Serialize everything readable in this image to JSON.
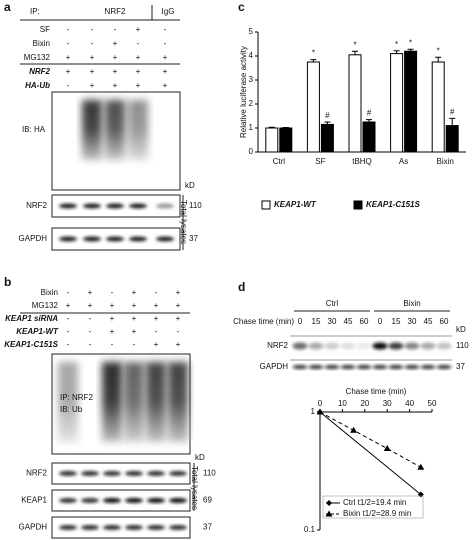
{
  "panels": {
    "a": {
      "label": "a",
      "ip_label": "IP:",
      "ip_groups": [
        "NRF2",
        "IgG"
      ],
      "rows": [
        {
          "name": "SF",
          "signs": [
            "-",
            "-",
            "-",
            "+",
            "-"
          ]
        },
        {
          "name": "Bixin",
          "signs": [
            "-",
            "-",
            "+",
            "-",
            "-"
          ]
        },
        {
          "name": "MG132",
          "signs": [
            "+",
            "+",
            "+",
            "+",
            "+"
          ]
        },
        {
          "name": "NRF2",
          "italic": true,
          "signs": [
            "+",
            "+",
            "+",
            "+",
            "+"
          ]
        },
        {
          "name": "HA-Ub",
          "italic": true,
          "signs": [
            "-",
            "+",
            "+",
            "+",
            "+"
          ]
        }
      ],
      "blot_label": "IB: HA",
      "kd": "kD",
      "bands": [
        {
          "name": "NRF2",
          "kd": "110"
        },
        {
          "name": "GAPDH",
          "kd": "37"
        }
      ],
      "lysates": "Total lysates"
    },
    "b": {
      "label": "b",
      "rows": [
        {
          "name": "Bixin",
          "signs": [
            "-",
            "+",
            "-",
            "+",
            "-",
            "+"
          ]
        },
        {
          "name": "MG132",
          "signs": [
            "+",
            "+",
            "+",
            "+",
            "+",
            "+"
          ]
        },
        {
          "name": "KEAP1 siRNA",
          "italic": true,
          "signs": [
            "-",
            "-",
            "+",
            "+",
            "+",
            "+"
          ]
        },
        {
          "name": "KEAP1-WT",
          "italic": true,
          "signs": [
            "-",
            "-",
            "+",
            "+",
            "-",
            "-"
          ]
        },
        {
          "name": "KEAP1-C151S",
          "italic": true,
          "signs": [
            "-",
            "-",
            "-",
            "-",
            "+",
            "+"
          ]
        }
      ],
      "blot_label": [
        "IP: NRF2",
        "IB: Ub"
      ],
      "kd": "kD",
      "bands": [
        {
          "name": "NRF2",
          "kd": "110"
        },
        {
          "name": "KEAP1",
          "kd": "69"
        },
        {
          "name": "GAPDH",
          "kd": "37"
        }
      ],
      "lysates": "Total lysates"
    },
    "c": {
      "label": "c"
    },
    "d": {
      "label": "d",
      "groups": [
        "Ctrl",
        "Bixin"
      ],
      "chase_label": "Chase time (min)",
      "times": [
        0,
        15,
        30,
        45,
        60
      ],
      "kd": "kD",
      "bands": [
        {
          "name": "NRF2",
          "kd": "110"
        },
        {
          "name": "GAPDH",
          "kd": "37"
        }
      ]
    }
  },
  "chart_data": [
    {
      "type": "bar",
      "ylabel": "Relative luciferase activity",
      "categories": [
        "Ctrl",
        "SF",
        "tBHQ",
        "As",
        "Bixin"
      ],
      "series": [
        {
          "name": "KEAP1-WT",
          "color": "#ffffff",
          "values": [
            1.0,
            3.75,
            4.05,
            4.1,
            3.75
          ],
          "errors": [
            0.03,
            0.1,
            0.15,
            0.12,
            0.2
          ]
        },
        {
          "name": "KEAP1-C151S",
          "color": "#000000",
          "values": [
            1.0,
            1.15,
            1.25,
            4.2,
            1.1
          ],
          "errors": [
            0.02,
            0.1,
            0.1,
            0.08,
            0.3
          ]
        }
      ],
      "annotations": [
        {
          "text": "*",
          "category": "SF",
          "series": "KEAP1-WT"
        },
        {
          "text": "#",
          "category": "SF",
          "series": "KEAP1-C151S"
        },
        {
          "text": "*",
          "category": "tBHQ",
          "series": "KEAP1-WT"
        },
        {
          "text": "#",
          "category": "tBHQ",
          "series": "KEAP1-C151S"
        },
        {
          "text": "*",
          "category": "As",
          "series": "KEAP1-WT"
        },
        {
          "text": "*",
          "category": "As",
          "series": "KEAP1-C151S"
        },
        {
          "text": "*",
          "category": "Bixin",
          "series": "KEAP1-WT"
        },
        {
          "text": "#",
          "category": "Bixin",
          "series": "KEAP1-C151S"
        }
      ],
      "ylim": [
        0,
        5
      ],
      "yticks": [
        0,
        1,
        2,
        3,
        4,
        5
      ]
    },
    {
      "type": "line",
      "xlabel": "Chase time (min)",
      "log_y": true,
      "series": [
        {
          "name": "Ctrl t1/2=19.4 min",
          "color": "#000000",
          "linestyle": "solid",
          "marker": "diamond",
          "x": [
            0,
            45
          ],
          "values": [
            1,
            0.2
          ]
        },
        {
          "name": "Bixin t1/2=28.9 min",
          "color": "#000000",
          "linestyle": "dashed",
          "marker": "triangle",
          "x": [
            0,
            15,
            30,
            45
          ],
          "values": [
            1,
            0.7,
            0.49,
            0.34
          ]
        }
      ],
      "xlim": [
        0,
        50
      ],
      "xticks": [
        0,
        10,
        20,
        30,
        40,
        50
      ],
      "ylim": [
        0.1,
        1
      ],
      "yticks": [
        0.1,
        1
      ]
    }
  ]
}
